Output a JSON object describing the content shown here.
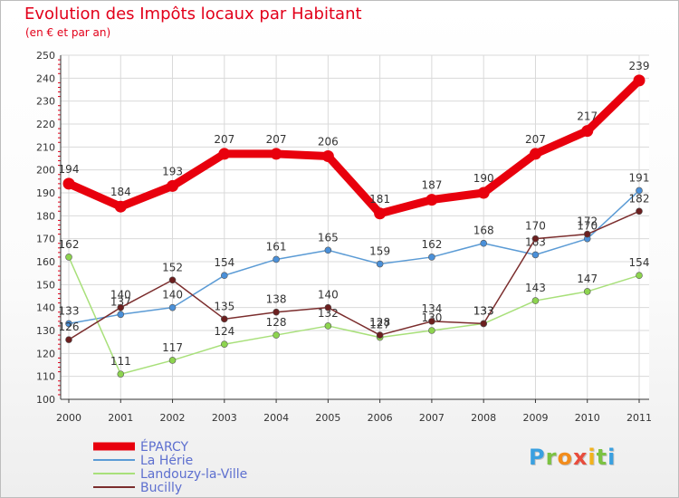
{
  "chart_data": {
    "type": "line",
    "title": "Evolution des Impôts locaux par Habitant",
    "subtitle": "(en € et par an)",
    "xlabel": "",
    "ylabel": "",
    "categories": [
      "2000",
      "2001",
      "2002",
      "2003",
      "2004",
      "2005",
      "2006",
      "2007",
      "2008",
      "2009",
      "2010",
      "2011"
    ],
    "ylim": [
      100,
      250
    ],
    "yticks": [
      100,
      110,
      120,
      130,
      140,
      150,
      160,
      170,
      180,
      190,
      200,
      210,
      220,
      230,
      240,
      250
    ],
    "grid": true,
    "series": [
      {
        "name": "ÉPARCY",
        "values": [
          194,
          184,
          193,
          207,
          207,
          206,
          181,
          187,
          190,
          207,
          217,
          239
        ],
        "color": "#e8000d",
        "dot_color": "#e8000d",
        "emphasis": true
      },
      {
        "name": "La Hérie",
        "values": [
          133,
          137,
          140,
          154,
          161,
          165,
          159,
          162,
          168,
          163,
          170,
          191
        ],
        "color": "#5b9bd5",
        "dot_color": "#4a90d9",
        "emphasis": false
      },
      {
        "name": "Landouzy-la-Ville",
        "values": [
          162,
          111,
          117,
          124,
          128,
          132,
          127,
          130,
          133,
          143,
          147,
          154
        ],
        "color": "#a8e07a",
        "dot_color": "#8dd44f",
        "emphasis": false
      },
      {
        "name": "Bucilly",
        "values": [
          126,
          140,
          152,
          135,
          138,
          140,
          128,
          134,
          133,
          170,
          172,
          182
        ],
        "color": "#7b2d2d",
        "dot_color": "#6b1f1f",
        "emphasis": false
      }
    ]
  },
  "legend": {
    "items": [
      "ÉPARCY",
      "La Hérie",
      "Landouzy-la-Ville",
      "Bucilly"
    ],
    "text_color": "#5d6fcf"
  },
  "logo": {
    "letters": [
      "P",
      "r",
      "o",
      "x",
      "i",
      "t",
      "i"
    ],
    "colors": [
      "#3aa0e0",
      "#7cc242",
      "#f28c1c",
      "#e84c3d",
      "#f2b21c",
      "#7cc242",
      "#3aa0e0"
    ],
    "alt": "Proxiti"
  }
}
